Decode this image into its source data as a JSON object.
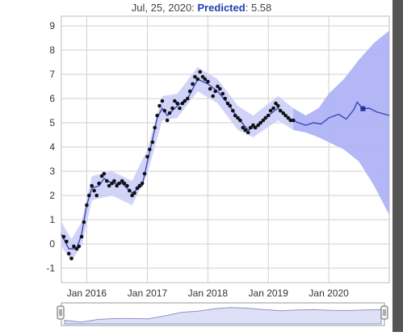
{
  "hover": {
    "date": "Jul, 25, 2020:",
    "label": "Predicted",
    "separator": ":",
    "value": "5.58"
  },
  "colors": {
    "observed": "#111111",
    "fit_line": "#3a46b8",
    "band": "#c9ccf7",
    "forecast_band": "#a9aef5",
    "marker": "#2230a8",
    "grid": "#cfcfcf",
    "right_shadow": "#555555"
  },
  "chart_data": {
    "type": "line",
    "title": "",
    "xlabel": "",
    "ylabel": "",
    "x_ticks": [
      "Jan 2016",
      "Jan 2017",
      "Jan 2018",
      "Jan 2019",
      "Jan 2020"
    ],
    "y_ticks": [
      "-1",
      "0",
      "1",
      "2",
      "3",
      "4",
      "5",
      "6",
      "7",
      "8",
      "9"
    ],
    "ylim": [
      -1.6,
      9.4
    ],
    "xlim": [
      "2015-08-01",
      "2020-12-31"
    ],
    "grid": true,
    "legend": "none",
    "series": [
      {
        "role": "observed",
        "style": "points",
        "points": [
          [
            "2015-08-15",
            0.3
          ],
          [
            "2015-09-01",
            0.1
          ],
          [
            "2015-09-15",
            -0.4
          ],
          [
            "2015-10-01",
            -0.6
          ],
          [
            "2015-10-15",
            -0.1
          ],
          [
            "2015-11-01",
            -0.2
          ],
          [
            "2015-11-15",
            -0.1
          ],
          [
            "2015-12-01",
            0.3
          ],
          [
            "2015-12-15",
            0.9
          ],
          [
            "2016-01-01",
            1.6
          ],
          [
            "2016-01-15",
            2.0
          ],
          [
            "2016-02-01",
            2.4
          ],
          [
            "2016-02-15",
            2.2
          ],
          [
            "2016-03-01",
            2.0
          ],
          [
            "2016-03-15",
            2.5
          ],
          [
            "2016-04-01",
            2.8
          ],
          [
            "2016-04-15",
            2.9
          ],
          [
            "2016-05-01",
            2.6
          ],
          [
            "2016-05-15",
            2.4
          ],
          [
            "2016-06-01",
            2.5
          ],
          [
            "2016-06-15",
            2.6
          ],
          [
            "2016-07-01",
            2.4
          ],
          [
            "2016-07-15",
            2.5
          ],
          [
            "2016-08-01",
            2.6
          ],
          [
            "2016-08-15",
            2.5
          ],
          [
            "2016-09-01",
            2.4
          ],
          [
            "2016-09-15",
            2.2
          ],
          [
            "2016-10-01",
            2.0
          ],
          [
            "2016-10-15",
            2.1
          ],
          [
            "2016-11-01",
            2.3
          ],
          [
            "2016-11-15",
            2.4
          ],
          [
            "2016-12-01",
            2.5
          ],
          [
            "2016-12-15",
            2.9
          ],
          [
            "2017-01-01",
            3.6
          ],
          [
            "2017-01-15",
            3.9
          ],
          [
            "2017-02-01",
            4.2
          ],
          [
            "2017-02-15",
            4.8
          ],
          [
            "2017-03-01",
            5.3
          ],
          [
            "2017-03-15",
            5.7
          ],
          [
            "2017-04-01",
            5.9
          ],
          [
            "2017-04-15",
            5.5
          ],
          [
            "2017-05-01",
            5.1
          ],
          [
            "2017-05-15",
            5.4
          ],
          [
            "2017-06-01",
            5.6
          ],
          [
            "2017-06-15",
            5.9
          ],
          [
            "2017-07-01",
            5.8
          ],
          [
            "2017-07-15",
            5.6
          ],
          [
            "2017-08-01",
            5.8
          ],
          [
            "2017-08-15",
            5.9
          ],
          [
            "2017-09-01",
            6.0
          ],
          [
            "2017-09-15",
            6.3
          ],
          [
            "2017-10-01",
            6.6
          ],
          [
            "2017-10-15",
            6.9
          ],
          [
            "2017-11-01",
            6.8
          ],
          [
            "2017-11-15",
            7.1
          ],
          [
            "2017-12-01",
            6.9
          ],
          [
            "2017-12-15",
            6.8
          ],
          [
            "2018-01-01",
            6.7
          ],
          [
            "2018-01-15",
            6.4
          ],
          [
            "2018-02-01",
            6.1
          ],
          [
            "2018-02-15",
            6.3
          ],
          [
            "2018-03-01",
            6.5
          ],
          [
            "2018-03-15",
            6.4
          ],
          [
            "2018-04-01",
            6.2
          ],
          [
            "2018-04-15",
            6.0
          ],
          [
            "2018-05-01",
            5.8
          ],
          [
            "2018-05-15",
            5.7
          ],
          [
            "2018-06-01",
            5.5
          ],
          [
            "2018-06-15",
            5.3
          ],
          [
            "2018-07-01",
            5.2
          ],
          [
            "2018-07-15",
            5.1
          ],
          [
            "2018-08-01",
            4.8
          ],
          [
            "2018-08-15",
            4.7
          ],
          [
            "2018-09-01",
            4.6
          ],
          [
            "2018-09-15",
            4.8
          ],
          [
            "2018-10-01",
            4.9
          ],
          [
            "2018-10-15",
            4.8
          ],
          [
            "2018-11-01",
            4.9
          ],
          [
            "2018-11-15",
            5.0
          ],
          [
            "2018-12-01",
            5.1
          ],
          [
            "2018-12-15",
            5.2
          ],
          [
            "2019-01-01",
            5.3
          ],
          [
            "2019-01-15",
            5.5
          ],
          [
            "2019-02-01",
            5.6
          ],
          [
            "2019-02-15",
            5.8
          ],
          [
            "2019-03-01",
            5.7
          ],
          [
            "2019-03-15",
            5.5
          ],
          [
            "2019-04-01",
            5.4
          ],
          [
            "2019-04-15",
            5.3
          ],
          [
            "2019-05-01",
            5.2
          ],
          [
            "2019-05-15",
            5.1
          ],
          [
            "2019-06-01",
            5.1
          ]
        ]
      },
      {
        "role": "fitted",
        "style": "line",
        "points": [
          [
            "2015-08-01",
            0.4
          ],
          [
            "2015-09-15",
            -0.2
          ],
          [
            "2015-11-01",
            -0.2
          ],
          [
            "2015-12-01",
            0.4
          ],
          [
            "2016-01-01",
            1.6
          ],
          [
            "2016-02-01",
            2.3
          ],
          [
            "2016-03-15",
            2.4
          ],
          [
            "2016-04-15",
            2.7
          ],
          [
            "2016-06-01",
            2.5
          ],
          [
            "2016-08-01",
            2.5
          ],
          [
            "2016-10-01",
            2.1
          ],
          [
            "2016-12-01",
            2.4
          ],
          [
            "2017-01-01",
            3.4
          ],
          [
            "2017-02-01",
            4.3
          ],
          [
            "2017-03-01",
            5.2
          ],
          [
            "2017-04-01",
            5.6
          ],
          [
            "2017-05-01",
            5.3
          ],
          [
            "2017-07-01",
            5.7
          ],
          [
            "2017-09-01",
            6.0
          ],
          [
            "2017-11-01",
            6.8
          ],
          [
            "2018-01-01",
            6.6
          ],
          [
            "2018-03-01",
            6.3
          ],
          [
            "2018-05-01",
            5.8
          ],
          [
            "2018-07-01",
            5.2
          ],
          [
            "2018-09-01",
            4.7
          ],
          [
            "2018-11-01",
            4.9
          ],
          [
            "2019-01-01",
            5.3
          ],
          [
            "2019-03-01",
            5.6
          ],
          [
            "2019-05-01",
            5.2
          ],
          [
            "2019-07-01",
            5.0
          ],
          [
            "2019-08-15",
            4.9
          ],
          [
            "2019-10-01",
            5.0
          ],
          [
            "2019-11-15",
            4.95
          ],
          [
            "2020-01-01",
            5.2
          ],
          [
            "2020-03-01",
            5.35
          ],
          [
            "2020-04-15",
            5.15
          ],
          [
            "2020-06-01",
            5.55
          ],
          [
            "2020-06-20",
            5.85
          ],
          [
            "2020-07-25",
            5.58
          ],
          [
            "2020-09-01",
            5.6
          ],
          [
            "2020-10-15",
            5.45
          ],
          [
            "2020-12-31",
            5.3
          ]
        ]
      },
      {
        "role": "interval",
        "style": "band",
        "upper": [
          [
            "2015-08-01",
            0.9
          ],
          [
            "2015-10-01",
            0.2
          ],
          [
            "2015-12-01",
            0.9
          ],
          [
            "2016-02-01",
            2.8
          ],
          [
            "2016-06-01",
            3.0
          ],
          [
            "2016-10-01",
            2.6
          ],
          [
            "2017-01-01",
            3.9
          ],
          [
            "2017-04-01",
            6.1
          ],
          [
            "2017-07-01",
            6.2
          ],
          [
            "2017-11-01",
            7.3
          ],
          [
            "2018-03-01",
            6.8
          ],
          [
            "2018-07-01",
            5.7
          ],
          [
            "2018-10-01",
            5.3
          ],
          [
            "2019-03-01",
            6.1
          ],
          [
            "2019-06-01",
            5.6
          ],
          [
            "2019-08-15",
            5.3
          ],
          [
            "2019-11-01",
            5.6
          ],
          [
            "2020-01-01",
            6.2
          ],
          [
            "2020-04-01",
            6.8
          ],
          [
            "2020-07-01",
            7.6
          ],
          [
            "2020-10-01",
            8.3
          ],
          [
            "2020-12-31",
            8.8
          ]
        ],
        "lower": [
          [
            "2015-08-01",
            -0.1
          ],
          [
            "2015-10-01",
            -0.7
          ],
          [
            "2015-12-01",
            -0.1
          ],
          [
            "2016-02-01",
            1.8
          ],
          [
            "2016-06-01",
            2.0
          ],
          [
            "2016-10-01",
            1.6
          ],
          [
            "2017-01-01",
            2.9
          ],
          [
            "2017-04-01",
            5.1
          ],
          [
            "2017-07-01",
            5.2
          ],
          [
            "2017-11-01",
            6.3
          ],
          [
            "2018-03-01",
            5.8
          ],
          [
            "2018-07-01",
            4.7
          ],
          [
            "2018-10-01",
            4.4
          ],
          [
            "2019-03-01",
            5.1
          ],
          [
            "2019-06-01",
            4.7
          ],
          [
            "2019-08-15",
            4.6
          ],
          [
            "2019-11-01",
            4.4
          ],
          [
            "2020-01-01",
            4.2
          ],
          [
            "2020-04-01",
            3.9
          ],
          [
            "2020-07-01",
            3.4
          ],
          [
            "2020-10-01",
            2.4
          ],
          [
            "2020-12-31",
            1.2
          ]
        ]
      }
    ],
    "highlight": {
      "x": "2020-07-25",
      "y": 5.58
    }
  },
  "navigator": {
    "profile": [
      0.2,
      0.1,
      0.25,
      0.3,
      0.3,
      0.28,
      0.45,
      0.65,
      0.72,
      0.85,
      0.92,
      0.88,
      0.8,
      0.74,
      0.78,
      0.8,
      0.76,
      0.75,
      0.78,
      0.8
    ]
  }
}
